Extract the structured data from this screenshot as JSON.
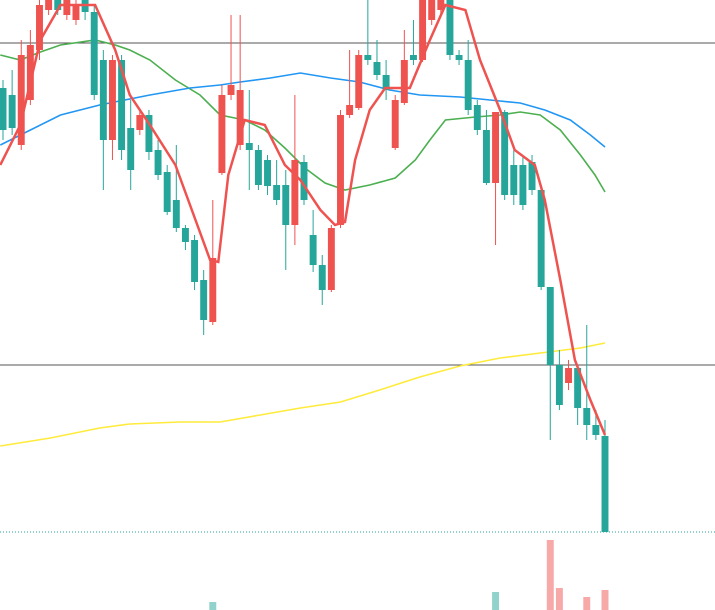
{
  "chart_data": {
    "type": "candlestick",
    "up_color": "#ef5350",
    "down_color": "#26a69a",
    "ylim": [
      0,
      610
    ],
    "xlim": [
      -0.33,
      78.06
    ],
    "open": [
      522,
      515,
      465,
      510,
      560,
      600,
      610,
      595,
      590,
      610,
      598,
      550,
      470,
      550,
      482,
      480,
      495,
      460,
      438,
      410,
      382,
      370,
      330,
      288,
      437,
      515,
      465,
      467,
      460,
      450,
      425,
      425,
      385,
      448,
      375,
      345,
      320,
      385,
      495,
      502,
      555,
      548,
      535,
      462,
      507,
      555,
      550,
      590,
      600,
      610,
      555,
      550,
      505,
      480,
      427,
      498,
      445,
      445,
      448,
      420,
      323,
      245,
      227,
      242,
      202,
      185,
      174
    ],
    "high": [
      530,
      540,
      570,
      580,
      610,
      610,
      610,
      610,
      610,
      610,
      605,
      560,
      555,
      555,
      510,
      500,
      500,
      470,
      445,
      465,
      385,
      375,
      340,
      410,
      525,
      595,
      595,
      520,
      465,
      455,
      450,
      440,
      515,
      455,
      400,
      355,
      385,
      500,
      560,
      560,
      610,
      570,
      550,
      515,
      580,
      590,
      610,
      610,
      610,
      610,
      560,
      570,
      510,
      500,
      498,
      500,
      460,
      455,
      455,
      425,
      323,
      260,
      250,
      245,
      285,
      200,
      190
    ],
    "low": [
      470,
      475,
      460,
      505,
      550,
      595,
      595,
      590,
      585,
      590,
      510,
      420,
      450,
      450,
      420,
      475,
      450,
      430,
      395,
      378,
      360,
      320,
      275,
      285,
      435,
      510,
      460,
      420,
      420,
      415,
      405,
      340,
      365,
      405,
      338,
      305,
      318,
      382,
      492,
      500,
      545,
      530,
      510,
      460,
      505,
      545,
      548,
      585,
      595,
      550,
      545,
      495,
      475,
      425,
      365,
      410,
      405,
      400,
      415,
      320,
      170,
      200,
      220,
      185,
      170,
      170,
      78
    ],
    "close": [
      480,
      482,
      555,
      565,
      605,
      610,
      600,
      610,
      605,
      598,
      515,
      470,
      550,
      460,
      440,
      495,
      458,
      435,
      398,
      382,
      368,
      328,
      290,
      352,
      515,
      525,
      520,
      460,
      425,
      424,
      410,
      385,
      450,
      410,
      345,
      320,
      382,
      495,
      505,
      555,
      550,
      535,
      520,
      510,
      550,
      550,
      610,
      610,
      610,
      555,
      550,
      500,
      480,
      427,
      498,
      415,
      415,
      405,
      420,
      323,
      245,
      205,
      242,
      202,
      185,
      175,
      78
    ],
    "hlines": [
      567,
      245
    ],
    "lines": [
      {
        "color": "#ef5350",
        "x": [
          -0.3,
          1.9,
          4.1,
          6.3,
          10.1,
          12.3,
          13.9,
          16.1,
          18.9,
          21.1,
          22.7,
          23.6,
          24.7,
          26.5,
          28.7,
          30.9,
          32.6,
          34.8,
          36.4,
          37.5,
          38.6,
          40.2,
          41.9,
          44.6,
          46.8,
          48.5,
          50.7,
          52.3,
          54.5,
          56.1,
          58.3,
          59.4,
          61.1,
          62.7,
          64.4,
          66
        ],
        "values": [
          445,
          485,
          570,
          605,
          605,
          560,
          515,
          485,
          445,
          390,
          350,
          348,
          435,
          490,
          485,
          445,
          430,
          400,
          385,
          388,
          450,
          500,
          522,
          522,
          570,
          605,
          600,
          550,
          500,
          460,
          445,
          410,
          330,
          250,
          210,
          175
        ]
      },
      {
        "color": "#4caf50",
        "x": [
          -0.3,
          1.9,
          4.1,
          6.3,
          10.1,
          12.3,
          13.9,
          16.1,
          18.9,
          21.6,
          23.8,
          26.5,
          28.7,
          30.9,
          33.1,
          35.3,
          37.5,
          40.2,
          43,
          45.2,
          46.8,
          48.5,
          51.8,
          54.5,
          56.7,
          58.9,
          61.1,
          63.3,
          64.9,
          66
        ],
        "values": [
          555,
          550,
          558,
          565,
          570,
          565,
          560,
          550,
          530,
          515,
          495,
          490,
          480,
          462,
          442,
          427,
          420,
          425,
          432,
          450,
          470,
          490,
          493,
          495,
          498,
          495,
          480,
          455,
          435,
          418
        ]
      },
      {
        "color": "#2196f3",
        "x": [
          -0.3,
          3,
          6.3,
          10.6,
          16.1,
          20.5,
          23.8,
          26,
          29.3,
          32.6,
          35.9,
          39.1,
          42.4,
          45.7,
          50.1,
          53.4,
          56.7,
          59.4,
          62.2,
          64.4,
          66
        ],
        "values": [
          465,
          480,
          495,
          505,
          515,
          522,
          525,
          528,
          532,
          537,
          532,
          528,
          520,
          515,
          513,
          510,
          507,
          500,
          490,
          475,
          463
        ]
      },
      {
        "color": "#ffeb3b",
        "x": [
          -0.3,
          5.2,
          10.6,
          13.9,
          19.4,
          23.8,
          28.2,
          32.6,
          37,
          41.3,
          45.7,
          50.1,
          54.5,
          59.8,
          63.3,
          66
        ],
        "values": [
          164,
          172,
          182,
          186,
          188,
          188,
          195,
          202,
          208,
          220,
          233,
          244,
          252,
          258,
          262,
          267
        ]
      }
    ],
    "vlim": [
      0,
      100
    ],
    "volume": [
      {
        "color": "#26a69a",
        "values": [
          null,
          null,
          null,
          null,
          null,
          null,
          null,
          null,
          null,
          null,
          null,
          null,
          null,
          null,
          null,
          null,
          null,
          null,
          null,
          null,
          null,
          null,
          null,
          8,
          null,
          null,
          null,
          null,
          null,
          null,
          null,
          null,
          null,
          null,
          null,
          null,
          null,
          null,
          null,
          null,
          null,
          null,
          null,
          null,
          null,
          null,
          null,
          null,
          null,
          null,
          null,
          null,
          null,
          null,
          18,
          null,
          null,
          null,
          null,
          null,
          null,
          null,
          null,
          null,
          null,
          null,
          null
        ]
      },
      {
        "color": "#ef5350",
        "values": [
          null,
          null,
          null,
          null,
          null,
          null,
          null,
          null,
          null,
          null,
          null,
          null,
          null,
          null,
          null,
          null,
          null,
          null,
          null,
          null,
          null,
          null,
          null,
          null,
          null,
          null,
          null,
          null,
          null,
          null,
          null,
          null,
          null,
          null,
          null,
          null,
          null,
          null,
          null,
          null,
          null,
          null,
          null,
          null,
          null,
          null,
          null,
          null,
          null,
          null,
          null,
          null,
          null,
          null,
          null,
          null,
          null,
          null,
          null,
          null,
          70,
          22,
          null,
          null,
          13,
          null,
          20
        ]
      }
    ]
  }
}
